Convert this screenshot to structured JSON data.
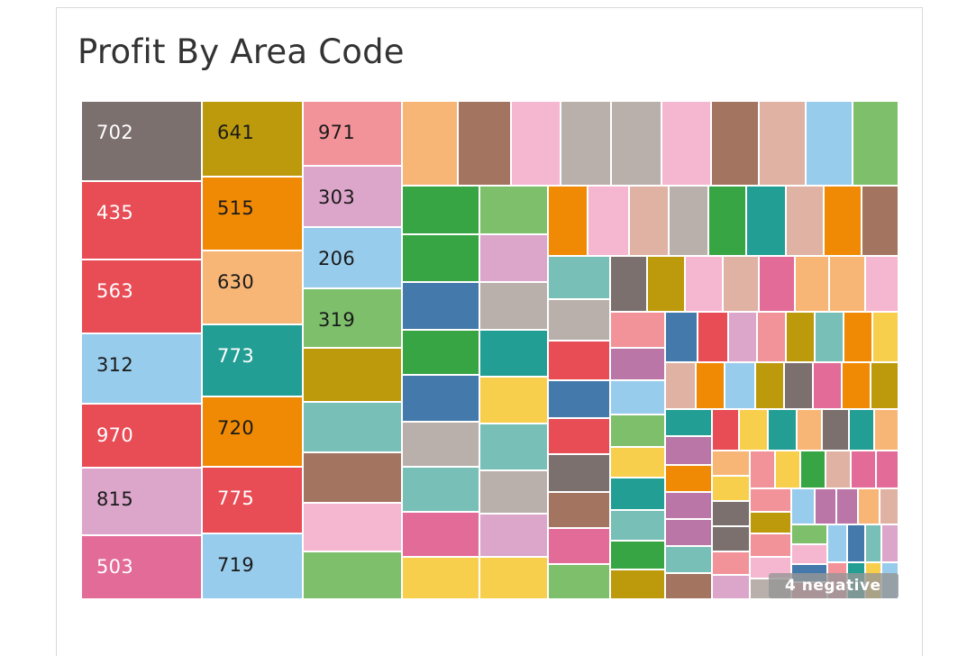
{
  "chart_data": {
    "type": "treemap",
    "title": "Profit By Area Code",
    "labeled_tiles": [
      {
        "label": "702",
        "color": "#7b706e",
        "text_color": "#ffffff"
      },
      {
        "label": "435",
        "color": "#e84c55",
        "text_color": "#ffffff"
      },
      {
        "label": "563",
        "color": "#e84c55",
        "text_color": "#ffffff"
      },
      {
        "label": "312",
        "color": "#98ccec",
        "text_color": "#1a1a1a"
      },
      {
        "label": "970",
        "color": "#e84c55",
        "text_color": "#ffffff"
      },
      {
        "label": "815",
        "color": "#dca5ca",
        "text_color": "#1a1a1a"
      },
      {
        "label": "503",
        "color": "#e26b97",
        "text_color": "#ffffff"
      },
      {
        "label": "641",
        "color": "#bc9a0c",
        "text_color": "#1a1a1a"
      },
      {
        "label": "515",
        "color": "#f08a04",
        "text_color": "#1a1a1a"
      },
      {
        "label": "630",
        "color": "#f8b676",
        "text_color": "#1a1a1a"
      },
      {
        "label": "773",
        "color": "#229e94",
        "text_color": "#ffffff"
      },
      {
        "label": "720",
        "color": "#f08a04",
        "text_color": "#1a1a1a"
      },
      {
        "label": "775",
        "color": "#e84c55",
        "text_color": "#ffffff"
      },
      {
        "label": "719",
        "color": "#98ccec",
        "text_color": "#1a1a1a"
      },
      {
        "label": "971",
        "color": "#f2939a",
        "text_color": "#1a1a1a"
      },
      {
        "label": "303",
        "color": "#dca5ca",
        "text_color": "#1a1a1a"
      },
      {
        "label": "206",
        "color": "#98ccec",
        "text_color": "#1a1a1a"
      },
      {
        "label": "319",
        "color": "#7ebf6c",
        "text_color": "#1a1a1a"
      }
    ],
    "negative_badge": "4 negative",
    "palette": {
      "gray": "#7b706e",
      "red": "#e84c55",
      "lightblue": "#98ccec",
      "pink": "#dca5ca",
      "magenta": "#e26b97",
      "olive": "#bc9a0c",
      "orange": "#f08a04",
      "peach": "#f8b676",
      "teal": "#229e94",
      "salmon": "#f2939a",
      "green": "#7ebf6c",
      "darkgreen": "#38a544",
      "blue": "#4379ab",
      "brown": "#a37560",
      "lightpink": "#f5b6d0",
      "taupe": "#bab0ab",
      "tan": "#dfb2a3",
      "mint": "#78c0b7",
      "yellow": "#f8cf4c",
      "purple": "#b976a7"
    }
  }
}
